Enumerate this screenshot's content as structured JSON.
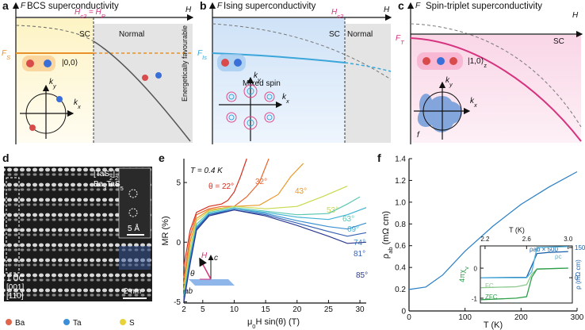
{
  "panels": {
    "a": {
      "letter": "a",
      "title": "BCS superconductivity",
      "y_axis": "F",
      "x_axis": "H",
      "critical_field": [
        "H",
        "c2",
        " = H",
        "P"
      ],
      "sc": "SC",
      "normal": "Normal",
      "energy": [
        "F",
        "S"
      ],
      "state": "|0,0⟩",
      "note": "Energetically favourable",
      "kx": [
        "k",
        "x"
      ],
      "ky": [
        "k",
        "y"
      ]
    },
    "b": {
      "letter": "b",
      "title": "Ising superconductivity",
      "y_axis": "F",
      "x_axis": "H",
      "critical_field": [
        "H",
        "c2"
      ],
      "sc": "SC",
      "normal": "Normal",
      "energy": [
        "F",
        "Is"
      ],
      "state": "Mixed spin",
      "kx": [
        "k",
        "x"
      ],
      "ky": [
        "k",
        "y"
      ]
    },
    "c": {
      "letter": "c",
      "title": "Spin-triplet superconductivity",
      "y_axis": "F",
      "x_axis": "H",
      "sc": "SC",
      "energy": [
        "F",
        "T"
      ],
      "state": [
        "|1,0⟩",
        "z"
      ],
      "kx": [
        "k",
        "x"
      ],
      "ky": [
        "k",
        "y"
      ],
      "gap": "f"
    },
    "d": {
      "letter": "d",
      "formula1": [
        "[TaS",
        "2",
        "]",
        "2"
      ],
      "formula2": [
        "Ba",
        "3",
        "TaS",
        "5"
      ],
      "scale_small": "5 Å",
      "unit_cell": "1 UC",
      "dir1": "[001]",
      "dir2": "[11̄0]",
      "scale": "2 nm",
      "legend": [
        "Ba",
        "Ta",
        "S"
      ]
    },
    "e": {
      "letter": "e",
      "temperature": "T = 0.4 K",
      "inset_h": "H",
      "inset_c": "c",
      "inset_theta": "θ",
      "inset_ab": "ab"
    },
    "f": {
      "letter": "f"
    }
  },
  "chart_data": [
    {
      "type": "line",
      "xlabel": [
        "μ",
        "0",
        "H sin(θ) (T)"
      ],
      "ylabel": "MR (%)",
      "xlim": [
        2,
        31
      ],
      "ylim": [
        -5.1,
        7
      ],
      "xticks": [
        2,
        5,
        10,
        15,
        20,
        25,
        30
      ],
      "yticks": [
        -5,
        0,
        5
      ],
      "series": [
        {
          "name": "θ = 22°",
          "color": "#d7301f",
          "x": [
            2,
            3,
            4,
            6,
            8,
            9,
            10,
            11,
            12
          ],
          "values": [
            -2,
            1,
            2.5,
            3,
            3.2,
            3.5,
            4.2,
            5.5,
            7
          ]
        },
        {
          "name": "32°",
          "color": "#e8632b",
          "x": [
            2,
            3,
            4,
            6,
            8,
            10,
            12,
            14,
            15.5
          ],
          "values": [
            -3,
            0.5,
            2.3,
            2.8,
            3,
            3,
            3.8,
            5,
            7
          ]
        },
        {
          "name": "43°",
          "color": "#e89a2a",
          "x": [
            2,
            3,
            4,
            6,
            10,
            14,
            17,
            19,
            21
          ],
          "values": [
            -3.5,
            0,
            2,
            2.7,
            3,
            3.1,
            4,
            5.5,
            6.6
          ]
        },
        {
          "name": "53°",
          "color": "#c9d94c",
          "x": [
            2,
            3,
            4,
            6,
            10,
            15,
            20,
            24,
            28
          ],
          "values": [
            -4,
            -0.5,
            1.8,
            2.6,
            3,
            2.8,
            3,
            3.8,
            4.7
          ]
        },
        {
          "name": "63°",
          "color": "#5cc7b4",
          "x": [
            2,
            3,
            4,
            6,
            10,
            15,
            20,
            25,
            28,
            30
          ],
          "values": [
            -4.5,
            -1,
            1.5,
            2.5,
            2.9,
            2.6,
            2.3,
            2.4,
            3.2,
            3.8
          ]
        },
        {
          "name": "69°",
          "color": "#3fb2d4",
          "x": [
            2,
            3,
            4,
            6,
            10,
            15,
            20,
            25,
            28,
            31
          ],
          "values": [
            -4.7,
            -1.3,
            1.3,
            2.4,
            2.8,
            2.5,
            2.1,
            1.9,
            2.3,
            2.9
          ]
        },
        {
          "name": "74°",
          "color": "#3a8fcf",
          "x": [
            2,
            3,
            4,
            6,
            10,
            15,
            20,
            25,
            28,
            31
          ],
          "values": [
            -4.8,
            -1.5,
            1.2,
            2.3,
            2.8,
            2.4,
            1.8,
            1.3,
            1.1,
            1.6
          ]
        },
        {
          "name": "81°",
          "color": "#3560b5",
          "x": [
            2,
            3,
            4,
            6,
            10,
            15,
            20,
            25,
            28,
            31
          ],
          "values": [
            -4.9,
            -1.7,
            1.1,
            2.3,
            2.7,
            2.3,
            1.6,
            0.9,
            0.5,
            0.8
          ]
        },
        {
          "name": "85°",
          "color": "#2b3a8f",
          "x": [
            2,
            3,
            4,
            6,
            10,
            15,
            20,
            25,
            28,
            31
          ],
          "values": [
            -5,
            -1.8,
            1,
            2.2,
            2.7,
            2.2,
            1.4,
            0.5,
            -0.1,
            0
          ]
        }
      ]
    },
    {
      "type": "line",
      "xlabel": "T (K)",
      "ylabel": [
        "ρ",
        "ab",
        " (mΩ cm)"
      ],
      "xlim": [
        0,
        300
      ],
      "ylim": [
        0,
        1.4
      ],
      "xticks": [
        0,
        100,
        200,
        300
      ],
      "yticks": [
        0,
        0.2,
        0.4,
        0.6,
        0.8,
        {
          "value": 1,
          "label": "1.0"
        },
        1.2,
        1.4
      ],
      "color": "#2a7fc4",
      "x": [
        0,
        3,
        30,
        60,
        100,
        150,
        200,
        250,
        300
      ],
      "values": [
        0.2,
        0.2,
        0.22,
        0.33,
        0.55,
        0.78,
        0.98,
        1.14,
        1.28
      ]
    },
    {
      "type": "line",
      "xlabel": "T (K)",
      "ylabel": [
        "4πχ",
        "v"
      ],
      "y2label": "ρ (mΩ cm)",
      "xlim": [
        2.155,
        3.04
      ],
      "ylim": [
        -1.16,
        0.74
      ],
      "y2lim": [
        -126,
        158
      ],
      "xticks": [
        2.2,
        2.6,
        {
          "value": 3,
          "label": "3.0"
        }
      ],
      "yticks": [
        -1,
        0
      ],
      "y2ticks": [
        0,
        150
      ],
      "series": [
        {
          "name": "FC",
          "color": "#8cc98f",
          "x": [
            2.16,
            2.5,
            2.6,
            2.65,
            2.7,
            3.0
          ],
          "values": [
            -0.65,
            -0.62,
            -0.55,
            -0.2,
            -0.03,
            0
          ]
        },
        {
          "name": "ZFC",
          "color": "#2e9e4a",
          "x": [
            2.16,
            2.5,
            2.6,
            2.65,
            2.7,
            3.0
          ],
          "values": [
            -1.05,
            -1,
            -0.95,
            -0.3,
            -0.03,
            0
          ]
        },
        {
          "name": "ρab × 500",
          "color": "#1a5fa8",
          "axis": "y2",
          "x": [
            2.16,
            2.6,
            2.65,
            2.7,
            2.8,
            3.0
          ],
          "values": [
            0,
            2,
            60,
            120,
            125,
            130
          ]
        },
        {
          "name": "ρc",
          "color": "#4fb3e0",
          "axis": "y2",
          "x": [
            2.16,
            2.6,
            2.65,
            2.7,
            3.0
          ],
          "values": [
            0,
            0,
            30,
            150,
            155
          ]
        }
      ]
    }
  ]
}
